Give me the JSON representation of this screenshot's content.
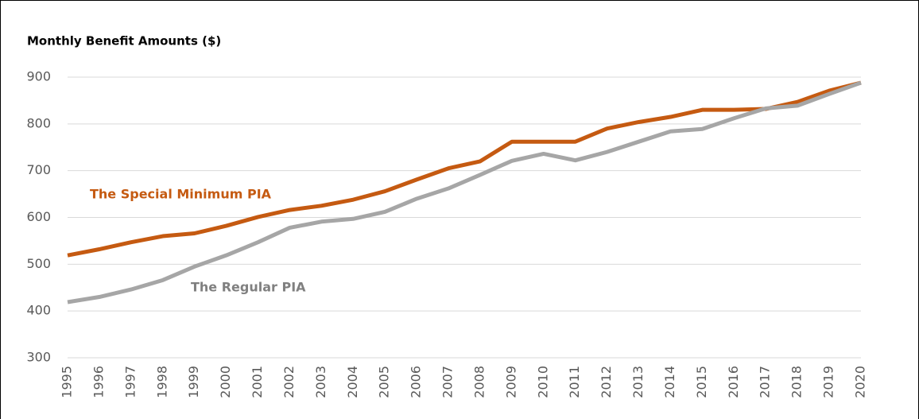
{
  "chart_data": {
    "type": "line",
    "title": "Monthly Benefit Amounts ($)",
    "x": [
      1995,
      1996,
      1997,
      1998,
      1999,
      2000,
      2001,
      2002,
      2003,
      2004,
      2005,
      2006,
      2007,
      2008,
      2009,
      2010,
      2011,
      2012,
      2013,
      2014,
      2015,
      2016,
      2017,
      2018,
      2019,
      2020
    ],
    "series": [
      {
        "name": "The Special Minimum PIA",
        "color": "#c55a11",
        "values": [
          519,
          532,
          547,
          560,
          566,
          582,
          601,
          616,
          625,
          638,
          656,
          681,
          705,
          720,
          762,
          762,
          762,
          790,
          804,
          815,
          830,
          830,
          832,
          847,
          871,
          888
        ]
      },
      {
        "name": "The Regular PIA",
        "color": "#a6a6a6",
        "values": [
          419,
          430,
          446,
          466,
          495,
          519,
          547,
          578,
          591,
          597,
          612,
          640,
          662,
          691,
          721,
          736,
          722,
          740,
          762,
          784,
          789,
          812,
          833,
          839,
          864,
          888
        ]
      }
    ],
    "xlim": [
      1995,
      2020
    ],
    "xticks": [
      1995,
      1996,
      1997,
      1998,
      1999,
      2000,
      2001,
      2002,
      2003,
      2004,
      2005,
      2006,
      2007,
      2008,
      2009,
      2010,
      2011,
      2012,
      2013,
      2014,
      2015,
      2016,
      2017,
      2018,
      2019,
      2020
    ],
    "ylim": [
      300,
      900
    ],
    "yticks": [
      300,
      400,
      500,
      600,
      700,
      800,
      900
    ],
    "grid": true
  }
}
